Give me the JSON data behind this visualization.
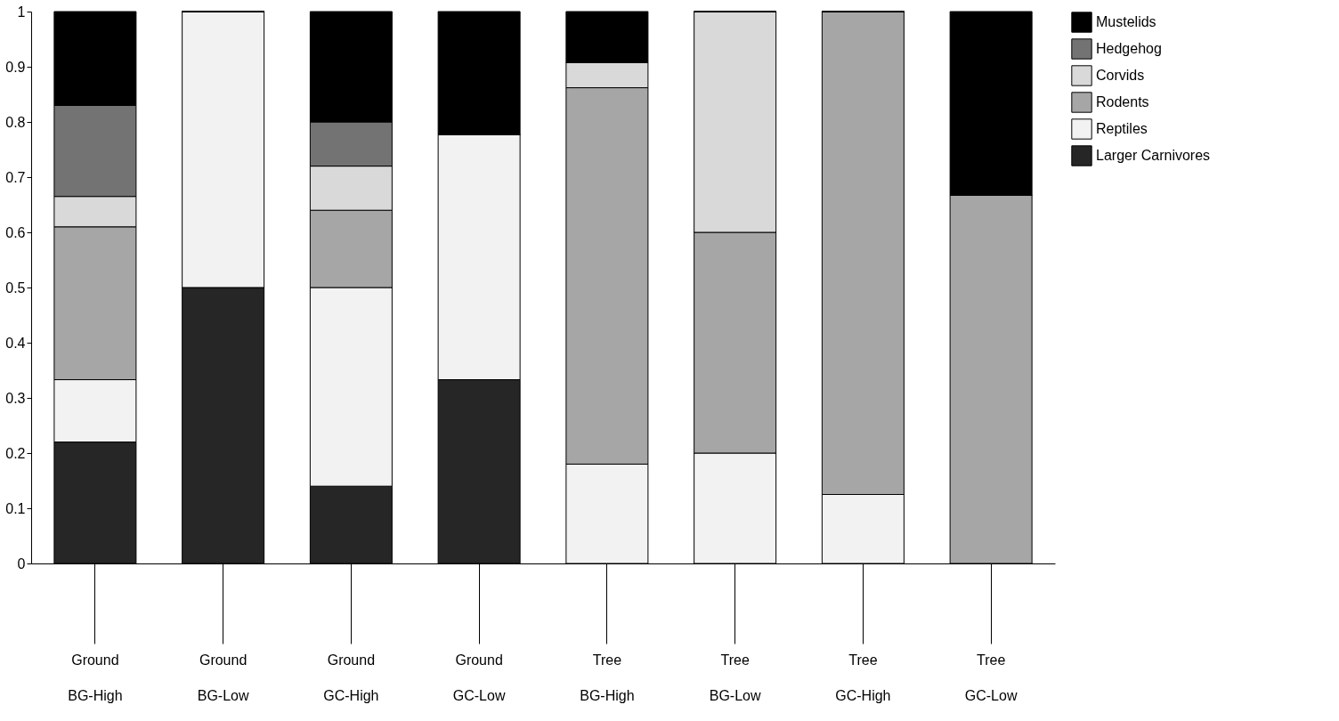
{
  "chart_data": {
    "type": "bar",
    "stacked": true,
    "categories": [
      "Ground BG-High",
      "Ground BG-Low",
      "Ground GC-High",
      "Ground GC-Low",
      "Tree BG-High",
      "Tree BG-Low",
      "Tree GC-High",
      "Tree GC-Low"
    ],
    "series": [
      {
        "name": "Larger Carnivores",
        "color": "#262626",
        "values": [
          0.22,
          0.5,
          0.14,
          0.333,
          0,
          0,
          0,
          0
        ]
      },
      {
        "name": "Reptiles",
        "color": "#f2f2f2",
        "values": [
          0.113,
          0.5,
          0.36,
          0.444,
          0.18,
          0.2,
          0.125,
          0
        ]
      },
      {
        "name": "Rodents",
        "color": "#a6a6a6",
        "values": [
          0.277,
          0,
          0.14,
          0,
          0.682,
          0.4,
          0.875,
          0.667
        ]
      },
      {
        "name": "Corvids",
        "color": "#d9d9d9",
        "values": [
          0.055,
          0,
          0.08,
          0,
          0.046,
          0.4,
          0,
          0
        ]
      },
      {
        "name": "Hedgehog",
        "color": "#737373",
        "values": [
          0.165,
          0,
          0.08,
          0,
          0,
          0,
          0,
          0
        ]
      },
      {
        "name": "Mustelids",
        "color": "#000000",
        "values": [
          0.17,
          0,
          0.2,
          0.223,
          0.092,
          0,
          0,
          0.333
        ]
      }
    ],
    "ylim": [
      0,
      1
    ],
    "yticks": [
      0,
      0.1,
      0.2,
      0.3,
      0.4,
      0.5,
      0.6,
      0.7,
      0.8,
      0.9,
      1
    ],
    "grid": false,
    "legend": "right"
  }
}
